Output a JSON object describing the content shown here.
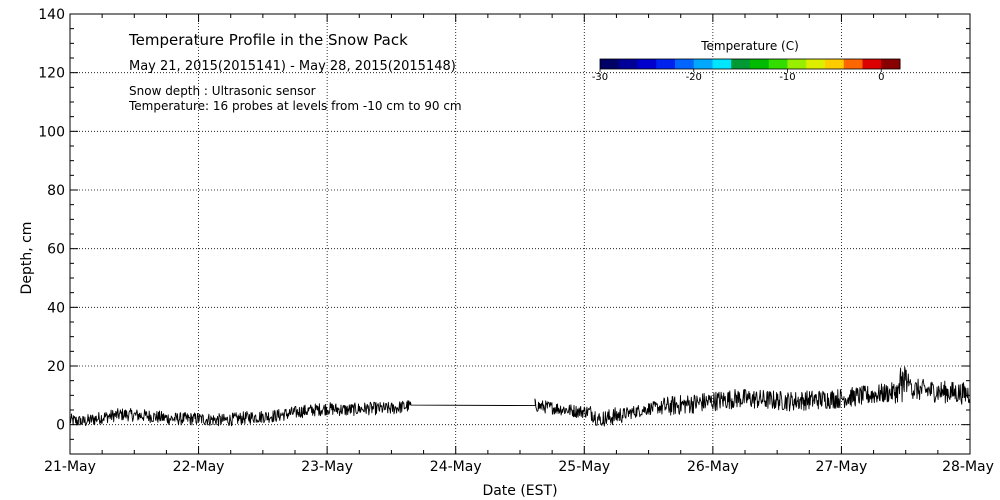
{
  "chart_data": {
    "type": "line",
    "title": "Temperature Profile in the Snow Pack",
    "subtitle": "May 21, 2015(2015141) - May 28, 2015(2015148)",
    "annotations": [
      "Snow depth : Ultrasonic sensor",
      "Temperature: 16 probes at levels from -10 cm to 90 cm"
    ],
    "xlabel": "Date (EST)",
    "ylabel": "Depth, cm",
    "x_ticks": [
      "21-May",
      "22-May",
      "23-May",
      "24-May",
      "25-May",
      "26-May",
      "27-May",
      "28-May"
    ],
    "xlim_days": [
      0,
      7
    ],
    "ylim": [
      -10,
      140
    ],
    "y_ticks": [
      0,
      20,
      40,
      60,
      80,
      100,
      120,
      140
    ],
    "grid": true,
    "colorbar": {
      "title": "Temperature (C)",
      "ticks": [
        "-30",
        "-20",
        "-10",
        "0"
      ],
      "tick_values": [
        -30,
        -20,
        -10,
        0
      ],
      "range": [
        -30,
        2
      ],
      "colors": [
        "#000066",
        "#000099",
        "#0000cc",
        "#0022ee",
        "#0066ff",
        "#00a8ff",
        "#00e6ff",
        "#009933",
        "#00bb00",
        "#33dd00",
        "#99ee00",
        "#ddee00",
        "#ffcc00",
        "#ff6600",
        "#dd0000",
        "#880000"
      ]
    },
    "series": [
      {
        "name": "Snow depth",
        "points": [
          {
            "day": 0.0,
            "depth": 1.5
          },
          {
            "day": 0.1,
            "depth": 1.0
          },
          {
            "day": 0.25,
            "depth": 2.5
          },
          {
            "day": 0.4,
            "depth": 3.5
          },
          {
            "day": 0.6,
            "depth": 3.0
          },
          {
            "day": 0.8,
            "depth": 2.0
          },
          {
            "day": 1.0,
            "depth": 2.0
          },
          {
            "day": 1.2,
            "depth": 1.5
          },
          {
            "day": 1.4,
            "depth": 2.5
          },
          {
            "day": 1.6,
            "depth": 3.0
          },
          {
            "day": 1.8,
            "depth": 4.5
          },
          {
            "day": 2.0,
            "depth": 5.5
          },
          {
            "day": 2.15,
            "depth": 5.0
          },
          {
            "day": 2.3,
            "depth": 5.5
          },
          {
            "day": 2.5,
            "depth": 5.5
          },
          {
            "day": 2.65,
            "depth": 6.5
          },
          {
            "day": 2.75,
            "depth": 6.5
          },
          {
            "day": 3.6,
            "depth": 7.5
          },
          {
            "day": 3.62,
            "depth": 6.5
          },
          {
            "day": 3.8,
            "depth": 5.5
          },
          {
            "day": 3.95,
            "depth": 4.5
          },
          {
            "day": 4.05,
            "depth": 4.5
          },
          {
            "day": 4.12,
            "depth": 1.5
          },
          {
            "day": 4.2,
            "depth": 2.5
          },
          {
            "day": 4.35,
            "depth": 4.0
          },
          {
            "day": 4.5,
            "depth": 5.5
          },
          {
            "day": 4.7,
            "depth": 6.5
          },
          {
            "day": 4.9,
            "depth": 7.5
          },
          {
            "day": 5.0,
            "depth": 8.0
          },
          {
            "day": 5.2,
            "depth": 9.0
          },
          {
            "day": 5.4,
            "depth": 8.5
          },
          {
            "day": 5.6,
            "depth": 8.0
          },
          {
            "day": 5.8,
            "depth": 8.5
          },
          {
            "day": 6.0,
            "depth": 9.0
          },
          {
            "day": 6.2,
            "depth": 10.0
          },
          {
            "day": 6.4,
            "depth": 11.0
          },
          {
            "day": 6.55,
            "depth": 12.0
          },
          {
            "day": 6.7,
            "depth": 11.5
          },
          {
            "day": 6.85,
            "depth": 11.0
          },
          {
            "day": 7.0,
            "depth": 10.5
          }
        ]
      }
    ]
  }
}
